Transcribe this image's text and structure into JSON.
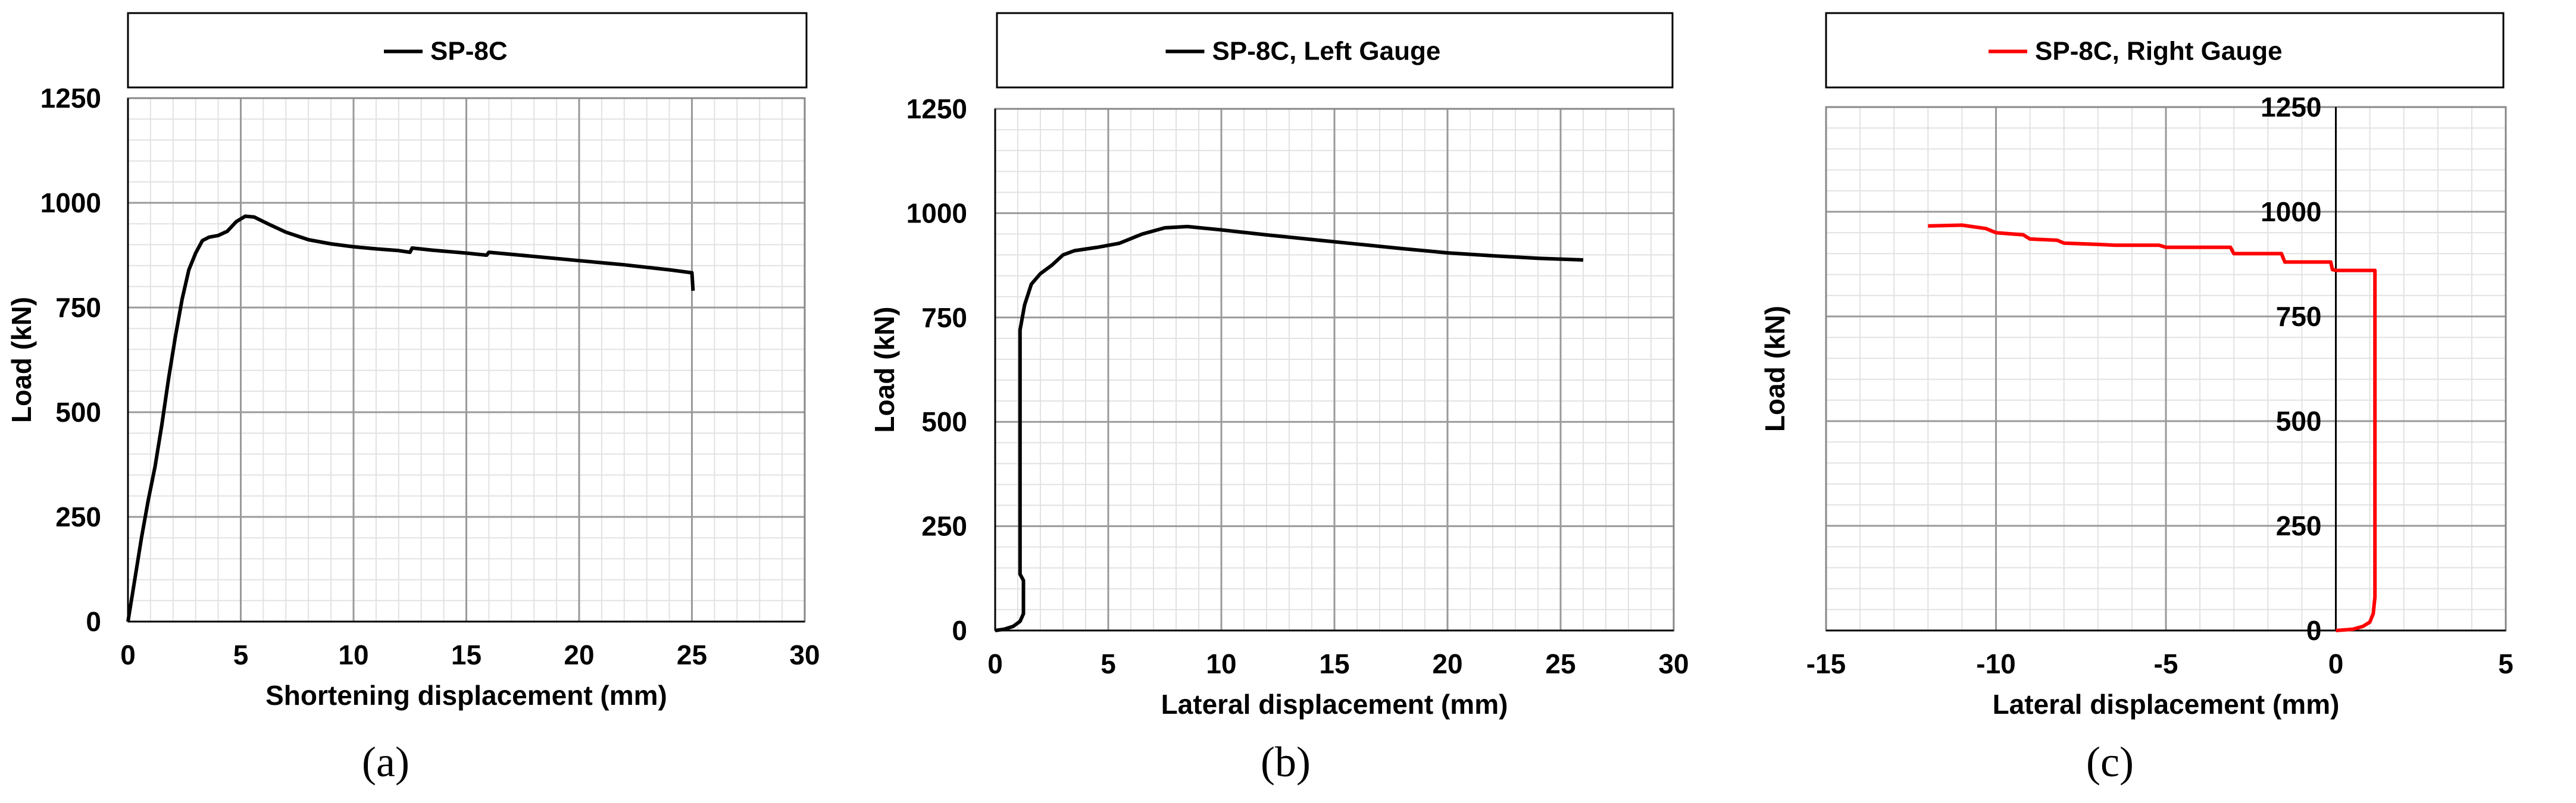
{
  "chart_data": [
    {
      "type": "line",
      "panel_label": "(a)",
      "legend": "SP-8C",
      "xlabel": "Shortening displacement (mm)",
      "ylabel": "Load (kN)",
      "xlim": [
        0,
        30
      ],
      "ylim": [
        0,
        1250
      ],
      "xticks": [
        0,
        5,
        10,
        15,
        20,
        25,
        30
      ],
      "yticks": [
        0,
        250,
        500,
        750,
        1000,
        1250
      ],
      "grid": true,
      "series": [
        {
          "name": "SP-8C",
          "color": "#000000",
          "points": [
            [
              0,
              0
            ],
            [
              0.3,
              100
            ],
            [
              0.6,
              200
            ],
            [
              0.9,
              290
            ],
            [
              1.2,
              370
            ],
            [
              1.5,
              470
            ],
            [
              1.8,
              580
            ],
            [
              2.1,
              680
            ],
            [
              2.4,
              770
            ],
            [
              2.7,
              840
            ],
            [
              3.0,
              880
            ],
            [
              3.3,
              910
            ],
            [
              3.6,
              918
            ],
            [
              4.0,
              922
            ],
            [
              4.4,
              932
            ],
            [
              4.8,
              955
            ],
            [
              5.2,
              968
            ],
            [
              5.6,
              966
            ],
            [
              6.2,
              950
            ],
            [
              7.0,
              930
            ],
            [
              8.0,
              912
            ],
            [
              9.0,
              902
            ],
            [
              10.0,
              895
            ],
            [
              11.0,
              890
            ],
            [
              12.0,
              886
            ],
            [
              12.5,
              882
            ],
            [
              12.6,
              892
            ],
            [
              13.5,
              887
            ],
            [
              15.0,
              880
            ],
            [
              15.9,
              875
            ],
            [
              16.0,
              882
            ],
            [
              18.0,
              872
            ],
            [
              20.0,
              862
            ],
            [
              22.0,
              852
            ],
            [
              24.0,
              840
            ],
            [
              25.0,
              833
            ],
            [
              25.05,
              790
            ]
          ]
        }
      ]
    },
    {
      "type": "line",
      "panel_label": "(b)",
      "legend": "SP-8C, Left Gauge",
      "xlabel": "Lateral displacement (mm)",
      "ylabel": "Load (kN)",
      "xlim": [
        0,
        30
      ],
      "ylim": [
        0,
        1250
      ],
      "xticks": [
        0,
        5,
        10,
        15,
        20,
        25,
        30
      ],
      "yticks": [
        0,
        250,
        500,
        750,
        1000,
        1250
      ],
      "grid": true,
      "series": [
        {
          "name": "SP-8C, Left Gauge",
          "color": "#000000",
          "points": [
            [
              0,
              0
            ],
            [
              0.4,
              3
            ],
            [
              0.8,
              10
            ],
            [
              1.1,
              22
            ],
            [
              1.25,
              40
            ],
            [
              1.25,
              120
            ],
            [
              1.1,
              135
            ],
            [
              1.1,
              720
            ],
            [
              1.3,
              780
            ],
            [
              1.6,
              830
            ],
            [
              2.0,
              855
            ],
            [
              2.5,
              875
            ],
            [
              3.0,
              900
            ],
            [
              3.5,
              910
            ],
            [
              4.5,
              918
            ],
            [
              5.5,
              928
            ],
            [
              6.5,
              950
            ],
            [
              7.5,
              965
            ],
            [
              8.5,
              968
            ],
            [
              10.0,
              960
            ],
            [
              12.0,
              948
            ],
            [
              14.0,
              937
            ],
            [
              16.0,
              926
            ],
            [
              18.0,
              915
            ],
            [
              20.0,
              905
            ],
            [
              22.0,
              898
            ],
            [
              24.0,
              892
            ],
            [
              26.0,
              888
            ]
          ]
        }
      ]
    },
    {
      "type": "line",
      "panel_label": "(c)",
      "legend": "SP-8C, Right Gauge",
      "xlabel": "Lateral displacement (mm)",
      "ylabel": "Load (kN)",
      "xlim": [
        -15,
        5
      ],
      "ylim": [
        0,
        1250
      ],
      "xticks": [
        -15,
        -10,
        -5,
        0,
        5
      ],
      "yticks": [
        0,
        250,
        500,
        750,
        1000,
        1250
      ],
      "y_axis_at_x": 0,
      "grid": true,
      "series": [
        {
          "name": "SP-8C, Right Gauge",
          "color": "#ff0000",
          "points": [
            [
              0,
              0
            ],
            [
              0.5,
              3
            ],
            [
              0.8,
              10
            ],
            [
              0.9,
              15
            ],
            [
              1.0,
              20
            ],
            [
              1.1,
              40
            ],
            [
              1.15,
              80
            ],
            [
              1.15,
              860
            ],
            [
              0,
              860
            ],
            [
              -0.1,
              862
            ],
            [
              -0.15,
              880
            ],
            [
              -1.5,
              880
            ],
            [
              -1.6,
              900
            ],
            [
              -3.0,
              900
            ],
            [
              -3.1,
              915
            ],
            [
              -5.0,
              915
            ],
            [
              -5.2,
              920
            ],
            [
              -6.5,
              920
            ],
            [
              -7.0,
              922
            ],
            [
              -8.0,
              925
            ],
            [
              -8.2,
              932
            ],
            [
              -9.0,
              935
            ],
            [
              -9.2,
              945
            ],
            [
              -10.0,
              950
            ],
            [
              -10.3,
              960
            ],
            [
              -11.0,
              968
            ],
            [
              -12.0,
              966
            ]
          ]
        }
      ]
    }
  ]
}
